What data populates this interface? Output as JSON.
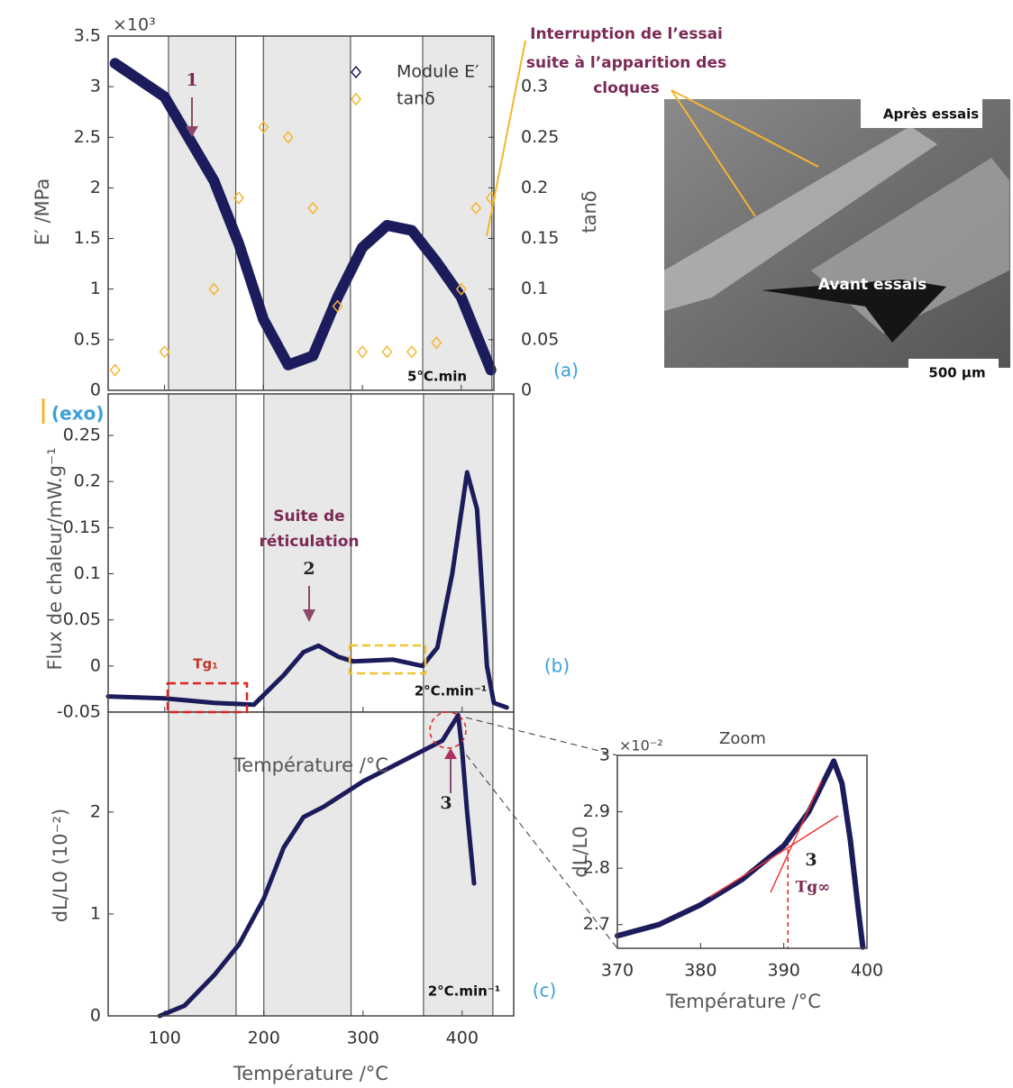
{
  "chart_data": [
    {
      "type": "scatter",
      "panel_label": "(a)",
      "y_label": "E′ /MPa",
      "y2_label": "tanδ",
      "y_multiplier": "×10³",
      "rate": "5°C.min",
      "arrow_label": "1",
      "x": [
        50,
        100,
        150,
        175,
        200,
        225,
        250,
        275,
        300,
        325,
        350,
        375,
        400,
        415,
        430
      ],
      "series": [
        {
          "name": "Module E′",
          "color": "#1c1c5c",
          "marker": "line",
          "values": [
            3.23,
            2.9,
            2.07,
            1.45,
            0.7,
            0.25,
            0.34,
            0.92,
            1.41,
            1.63,
            1.58,
            1.27,
            0.92,
            0.56,
            0.2
          ]
        },
        {
          "name": "tanδ",
          "color": "#f5b52e",
          "marker": "diamond",
          "axis": "y2",
          "values": [
            0.02,
            0.038,
            0.1,
            0.19,
            0.26,
            0.25,
            0.18,
            0.083,
            0.038,
            0.038,
            0.038,
            0.047,
            0.1,
            0.18,
            0.19
          ]
        }
      ],
      "xlim": [
        43,
        433
      ],
      "xticks": [
        100,
        200,
        300,
        400
      ],
      "ylim": [
        0,
        3.5
      ],
      "yticks": [
        0,
        0.5,
        1,
        1.5,
        2,
        2.5,
        3,
        3.5
      ],
      "y2lim": [
        0,
        0.35
      ],
      "y2ticks": [
        0,
        0.05,
        0.1,
        0.15,
        0.2,
        0.25,
        0.3
      ]
    },
    {
      "type": "line",
      "panel_label": "(b)",
      "y_label": "Flux de chaleur/mW.g⁻¹",
      "x_label": "Température /°C",
      "exo": "(exo)",
      "annotation": [
        "Suite de",
        "réticulation"
      ],
      "arrow_label": "2",
      "tg_label": "Tg₁",
      "rate": "2°C.min⁻¹",
      "x": [
        43,
        100,
        150,
        190,
        220,
        240,
        255,
        275,
        290,
        330,
        360,
        375,
        390,
        405,
        415,
        425,
        432,
        445
      ],
      "series": [
        {
          "name": "Flux de chaleur",
          "color": "#1c1c5c",
          "values": [
            -0.033,
            -0.035,
            -0.04,
            -0.042,
            -0.01,
            0.015,
            0.022,
            0.01,
            0.005,
            0.007,
            0.0,
            0.02,
            0.1,
            0.21,
            0.17,
            0.0,
            -0.04,
            -0.045
          ]
        }
      ],
      "xlim": [
        43,
        452
      ],
      "xticks": [
        100,
        200,
        300,
        400
      ],
      "ylim": [
        -0.05,
        0.295
      ],
      "yticks": [
        -0.05,
        0,
        0.05,
        0.1,
        0.15,
        0.2,
        0.25
      ]
    },
    {
      "type": "line",
      "panel_label": "(c)",
      "y_label": "dL/L0 (10⁻²)",
      "x_label": "Température /°C",
      "arrow_label": "3",
      "rate": "2°C.min⁻¹",
      "x": [
        95,
        120,
        150,
        175,
        200,
        220,
        240,
        260,
        300,
        350,
        380,
        396,
        400,
        405,
        412
      ],
      "series": [
        {
          "name": "dL/L0",
          "color": "#1c1c5c",
          "values": [
            0,
            0.1,
            0.4,
            0.7,
            1.15,
            1.65,
            1.95,
            2.05,
            2.3,
            2.55,
            2.7,
            2.95,
            2.6,
            2.0,
            1.3
          ]
        }
      ],
      "xlim": [
        43,
        452
      ],
      "xticks": [
        100,
        200,
        300,
        400
      ],
      "ylim": [
        0,
        2.98
      ],
      "yticks": [
        0,
        1,
        2
      ]
    },
    {
      "type": "line",
      "title": "Zoom",
      "y_label": "dL/L0",
      "x_label": "Température /°C",
      "y_multiplier": "×10⁻²",
      "arrow_label": "3",
      "tg_label": "Tg∞",
      "tg_x": 390.5,
      "x": [
        370,
        375,
        380,
        385,
        390,
        393,
        396,
        397,
        398,
        399,
        399.5
      ],
      "series": [
        {
          "name": "dL/L0",
          "color": "#1c1c5c",
          "values": [
            2.68,
            2.7,
            2.735,
            2.78,
            2.84,
            2.9,
            2.99,
            2.95,
            2.85,
            2.72,
            2.66
          ]
        }
      ],
      "xlim": [
        370,
        400
      ],
      "xticks": [
        370,
        380,
        390,
        400
      ],
      "ylim": [
        2.658,
        3.0
      ],
      "yticks": [
        2.7,
        2.8,
        2.9,
        3
      ]
    }
  ],
  "bands": [
    [
      104,
      172
    ],
    [
      200,
      288
    ],
    [
      361,
      431
    ]
  ],
  "photo": {
    "after": "Après essais",
    "before": "Avant essais",
    "scale": "500 µm"
  },
  "callout": [
    "Interruption de l’essai",
    "suite à l’apparition des",
    "cloques"
  ]
}
